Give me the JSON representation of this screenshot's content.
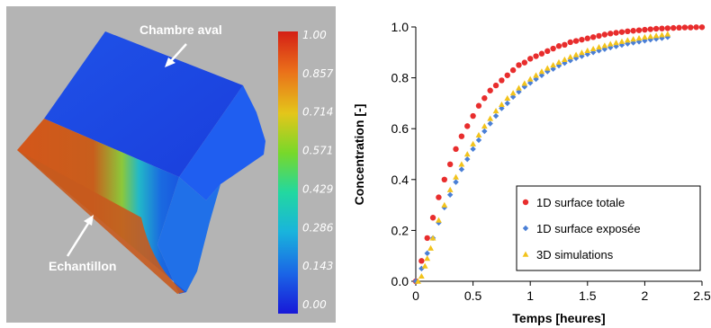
{
  "simulation_view": {
    "annotations": {
      "downstream_chamber": "Chambre aval",
      "sample": "Echantillon"
    },
    "colorbar": {
      "ticks": [
        "1.00",
        "0.857",
        "0.714",
        "0.571",
        "0.429",
        "0.286",
        "0.143",
        "0.00"
      ],
      "colors": [
        "#d41f16",
        "#ea6f1a",
        "#e4c61a",
        "#78d82a",
        "#22d8a0",
        "#19b4dc",
        "#1a64e6",
        "#1818d8"
      ]
    }
  },
  "chart_data": {
    "type": "scatter",
    "xlabel": "Temps [heures]",
    "ylabel": "Concentration [-]",
    "xlim": [
      0,
      2.5
    ],
    "ylim": [
      0,
      1.0
    ],
    "xticks": [
      "0",
      "0.5",
      "1",
      "1.5",
      "2",
      "2.5"
    ],
    "yticks": [
      "0.0",
      "0.2",
      "0.4",
      "0.6",
      "0.8",
      "1.0"
    ],
    "legend_position": "bottom-right",
    "grid": false,
    "series": [
      {
        "name": "1D surface totale",
        "color": "#e82d2d",
        "marker": "circle",
        "x": [
          0,
          0.05,
          0.1,
          0.15,
          0.2,
          0.25,
          0.3,
          0.35,
          0.4,
          0.45,
          0.5,
          0.55,
          0.6,
          0.65,
          0.7,
          0.75,
          0.8,
          0.85,
          0.9,
          0.95,
          1.0,
          1.05,
          1.1,
          1.15,
          1.2,
          1.25,
          1.3,
          1.35,
          1.4,
          1.45,
          1.5,
          1.55,
          1.6,
          1.65,
          1.7,
          1.75,
          1.8,
          1.85,
          1.9,
          1.95,
          2.0,
          2.05,
          2.1,
          2.15,
          2.2,
          2.25,
          2.3,
          2.35,
          2.4,
          2.45,
          2.5
        ],
        "y": [
          0.0,
          0.08,
          0.17,
          0.25,
          0.33,
          0.4,
          0.46,
          0.52,
          0.57,
          0.61,
          0.65,
          0.69,
          0.72,
          0.75,
          0.77,
          0.79,
          0.81,
          0.83,
          0.85,
          0.86,
          0.875,
          0.885,
          0.895,
          0.905,
          0.915,
          0.925,
          0.93,
          0.94,
          0.945,
          0.95,
          0.955,
          0.96,
          0.965,
          0.97,
          0.974,
          0.977,
          0.98,
          0.983,
          0.985,
          0.987,
          0.989,
          0.991,
          0.993,
          0.994,
          0.995,
          0.996,
          0.997,
          0.998,
          0.998,
          0.999,
          0.999
        ]
      },
      {
        "name": "1D surface exposée",
        "color": "#4a7fd6",
        "marker": "diamond",
        "x": [
          0,
          0.05,
          0.1,
          0.15,
          0.2,
          0.25,
          0.3,
          0.35,
          0.4,
          0.45,
          0.5,
          0.55,
          0.6,
          0.65,
          0.7,
          0.75,
          0.8,
          0.85,
          0.9,
          0.95,
          1.0,
          1.05,
          1.1,
          1.15,
          1.2,
          1.25,
          1.3,
          1.35,
          1.4,
          1.45,
          1.5,
          1.55,
          1.6,
          1.65,
          1.7,
          1.75,
          1.8,
          1.85,
          1.9,
          1.95,
          2.0,
          2.05,
          2.1,
          2.15,
          2.2
        ],
        "y": [
          0.0,
          0.05,
          0.11,
          0.17,
          0.23,
          0.29,
          0.34,
          0.39,
          0.44,
          0.48,
          0.52,
          0.555,
          0.59,
          0.62,
          0.65,
          0.68,
          0.7,
          0.725,
          0.745,
          0.765,
          0.78,
          0.795,
          0.81,
          0.825,
          0.835,
          0.848,
          0.858,
          0.868,
          0.877,
          0.885,
          0.893,
          0.9,
          0.907,
          0.913,
          0.919,
          0.924,
          0.929,
          0.934,
          0.938,
          0.942,
          0.946,
          0.95,
          0.953,
          0.956,
          0.96
        ]
      },
      {
        "name": "3D simulations",
        "color": "#f2c31c",
        "marker": "triangle",
        "x": [
          0.02,
          0.05,
          0.08,
          0.1,
          0.13,
          0.15,
          0.2,
          0.25,
          0.3,
          0.35,
          0.4,
          0.45,
          0.5,
          0.55,
          0.6,
          0.65,
          0.7,
          0.75,
          0.8,
          0.85,
          0.9,
          0.95,
          1.0,
          1.05,
          1.1,
          1.15,
          1.2,
          1.25,
          1.3,
          1.35,
          1.4,
          1.45,
          1.5,
          1.55,
          1.6,
          1.65,
          1.7,
          1.75,
          1.8,
          1.85,
          1.9,
          1.95,
          2.0,
          2.05,
          2.1,
          2.15,
          2.2
        ],
        "y": [
          0.0,
          0.02,
          0.06,
          0.09,
          0.13,
          0.17,
          0.24,
          0.3,
          0.36,
          0.41,
          0.46,
          0.5,
          0.54,
          0.575,
          0.61,
          0.64,
          0.67,
          0.695,
          0.72,
          0.74,
          0.76,
          0.778,
          0.795,
          0.81,
          0.825,
          0.838,
          0.85,
          0.861,
          0.872,
          0.882,
          0.891,
          0.899,
          0.907,
          0.914,
          0.921,
          0.927,
          0.933,
          0.938,
          0.943,
          0.948,
          0.952,
          0.956,
          0.96,
          0.963,
          0.966,
          0.969,
          0.972
        ]
      }
    ]
  }
}
